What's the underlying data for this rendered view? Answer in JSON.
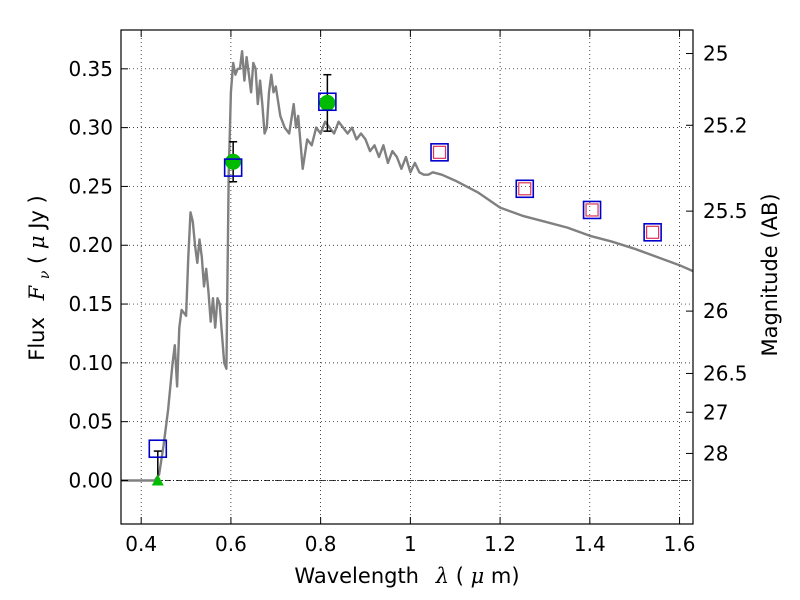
{
  "chart_data": {
    "type": "scatter",
    "title": "",
    "xlabel": {
      "prefix": "Wavelength",
      "symbol": "λ",
      "unit_open": " (",
      "unit_mu": "μ",
      "unit_rest": "m)"
    },
    "ylabel": {
      "prefix": "Flux",
      "symbol": "F",
      "subscript": "ν",
      "unit_open": " ( ",
      "unit_mu": "μ",
      "unit_rest": "Jy )"
    },
    "y2label": "Magnitude (AB)",
    "xlim": [
      0.355,
      1.63
    ],
    "ylim": [
      -0.037,
      0.383
    ],
    "grid": true,
    "x_ticks": [
      0.4,
      0.6,
      0.8,
      1.0,
      1.2,
      1.4,
      1.6
    ],
    "x_tick_labels": [
      "0.4",
      "0.6",
      "0.8",
      "1",
      "1.2",
      "1.4",
      "1.6"
    ],
    "y_ticks": [
      0.0,
      0.05,
      0.1,
      0.15,
      0.2,
      0.25,
      0.3,
      0.35
    ],
    "y_tick_labels": [
      "0.00",
      "0.05",
      "0.10",
      "0.15",
      "0.20",
      "0.25",
      "0.30",
      "0.35"
    ],
    "magnitude_ticks": [
      {
        "label": "25",
        "flux": 0.363
      },
      {
        "label": "25.2",
        "flux": 0.302
      },
      {
        "label": "25.5",
        "flux": 0.229
      },
      {
        "label": "26",
        "flux": 0.144
      },
      {
        "label": "26.5",
        "flux": 0.091
      },
      {
        "label": "27",
        "flux": 0.058
      },
      {
        "label": "28",
        "flux": 0.023
      }
    ],
    "series": [
      {
        "name": "model-spectrum",
        "kind": "line",
        "color": "#808080",
        "x": [
          0.355,
          0.43,
          0.44,
          0.45,
          0.46,
          0.47,
          0.475,
          0.48,
          0.485,
          0.49,
          0.5,
          0.505,
          0.51,
          0.515,
          0.52,
          0.525,
          0.53,
          0.535,
          0.54,
          0.545,
          0.55,
          0.555,
          0.56,
          0.565,
          0.57,
          0.575,
          0.58,
          0.585,
          0.59,
          0.595,
          0.6,
          0.605,
          0.61,
          0.615,
          0.62,
          0.625,
          0.63,
          0.635,
          0.64,
          0.645,
          0.65,
          0.655,
          0.66,
          0.665,
          0.67,
          0.675,
          0.68,
          0.685,
          0.69,
          0.695,
          0.7,
          0.71,
          0.72,
          0.73,
          0.74,
          0.745,
          0.75,
          0.76,
          0.77,
          0.78,
          0.79,
          0.8,
          0.81,
          0.82,
          0.83,
          0.84,
          0.85,
          0.86,
          0.87,
          0.88,
          0.89,
          0.9,
          0.91,
          0.92,
          0.93,
          0.94,
          0.95,
          0.96,
          0.97,
          0.98,
          0.99,
          1.0,
          1.01,
          1.02,
          1.03,
          1.04,
          1.05,
          1.07,
          1.1,
          1.15,
          1.2,
          1.25,
          1.3,
          1.35,
          1.4,
          1.45,
          1.5,
          1.55,
          1.6,
          1.63
        ],
        "y": [
          0.0,
          0.0,
          0.005,
          0.03,
          0.06,
          0.1,
          0.115,
          0.08,
          0.13,
          0.145,
          0.14,
          0.19,
          0.228,
          0.22,
          0.2,
          0.185,
          0.205,
          0.19,
          0.165,
          0.18,
          0.16,
          0.135,
          0.155,
          0.13,
          0.155,
          0.15,
          0.125,
          0.1,
          0.095,
          0.26,
          0.33,
          0.355,
          0.345,
          0.35,
          0.35,
          0.365,
          0.34,
          0.36,
          0.345,
          0.33,
          0.355,
          0.35,
          0.32,
          0.34,
          0.32,
          0.295,
          0.3,
          0.33,
          0.345,
          0.33,
          0.335,
          0.31,
          0.3,
          0.295,
          0.32,
          0.3,
          0.31,
          0.265,
          0.29,
          0.285,
          0.3,
          0.295,
          0.305,
          0.3,
          0.295,
          0.305,
          0.3,
          0.295,
          0.3,
          0.29,
          0.295,
          0.29,
          0.28,
          0.285,
          0.275,
          0.285,
          0.27,
          0.28,
          0.275,
          0.265,
          0.275,
          0.262,
          0.27,
          0.262,
          0.26,
          0.26,
          0.262,
          0.26,
          0.255,
          0.245,
          0.232,
          0.225,
          0.22,
          0.215,
          0.208,
          0.203,
          0.197,
          0.19,
          0.183,
          0.178
        ]
      },
      {
        "name": "observed-detections",
        "kind": "points",
        "marker": "circle",
        "color": "#00bb00",
        "x": [
          0.605,
          0.815
        ],
        "y": [
          0.271,
          0.321
        ],
        "yerr_low": [
          0.017,
          0.024
        ],
        "yerr_high": [
          0.017,
          0.024
        ]
      },
      {
        "name": "upper-limit",
        "kind": "points",
        "marker": "triangle",
        "color": "#00bb00",
        "x": [
          0.437
        ],
        "y": [
          0.0
        ],
        "yerr_low": [
          0.0
        ],
        "yerr_high": [
          0.025
        ]
      },
      {
        "name": "model-synthetic-photometry",
        "kind": "points",
        "marker": "square",
        "color": "#0000cc",
        "x": [
          0.437,
          0.605,
          0.815,
          1.065,
          1.255,
          1.405,
          1.54
        ],
        "y": [
          0.027,
          0.266,
          0.322,
          0.279,
          0.248,
          0.23,
          0.211
        ]
      },
      {
        "name": "predicted-nir",
        "kind": "points",
        "marker": "small-square",
        "color": "#dd3355",
        "x": [
          1.065,
          1.255,
          1.405,
          1.54
        ],
        "y": [
          0.279,
          0.248,
          0.23,
          0.211
        ]
      }
    ]
  }
}
